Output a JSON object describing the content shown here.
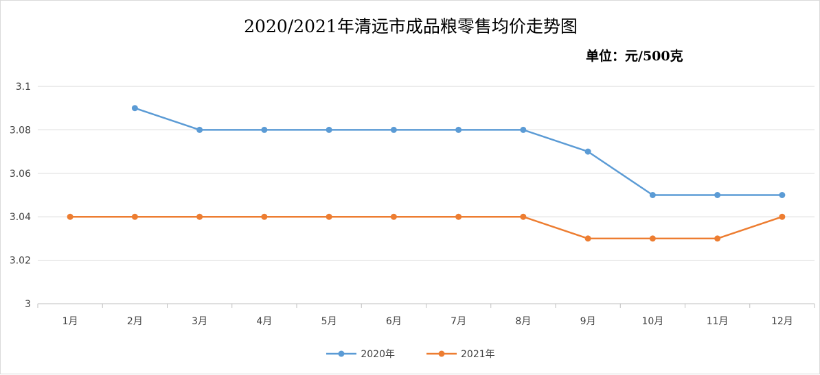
{
  "chart_data": {
    "type": "line",
    "title": "2020/2021年清远市成品粮零售均价走势图",
    "unit": "单位：元/500克",
    "categories": [
      "1月",
      "2月",
      "3月",
      "4月",
      "5月",
      "6月",
      "7月",
      "8月",
      "9月",
      "10月",
      "11月",
      "12月"
    ],
    "y_ticks": [
      "3",
      "3.02",
      "3.04",
      "3.06",
      "3.08",
      "3.1"
    ],
    "ylim": [
      3,
      3.1
    ],
    "grid": true,
    "legend_position": "bottom",
    "series": [
      {
        "name": "2020年",
        "color": "#5b9bd5",
        "values": [
          null,
          3.09,
          3.08,
          3.08,
          3.08,
          3.08,
          3.08,
          3.08,
          3.07,
          3.05,
          3.05,
          3.05
        ]
      },
      {
        "name": "2021年",
        "color": "#ed7d31",
        "values": [
          3.04,
          3.04,
          3.04,
          3.04,
          3.04,
          3.04,
          3.04,
          3.04,
          3.03,
          3.03,
          3.03,
          3.04
        ]
      }
    ]
  }
}
